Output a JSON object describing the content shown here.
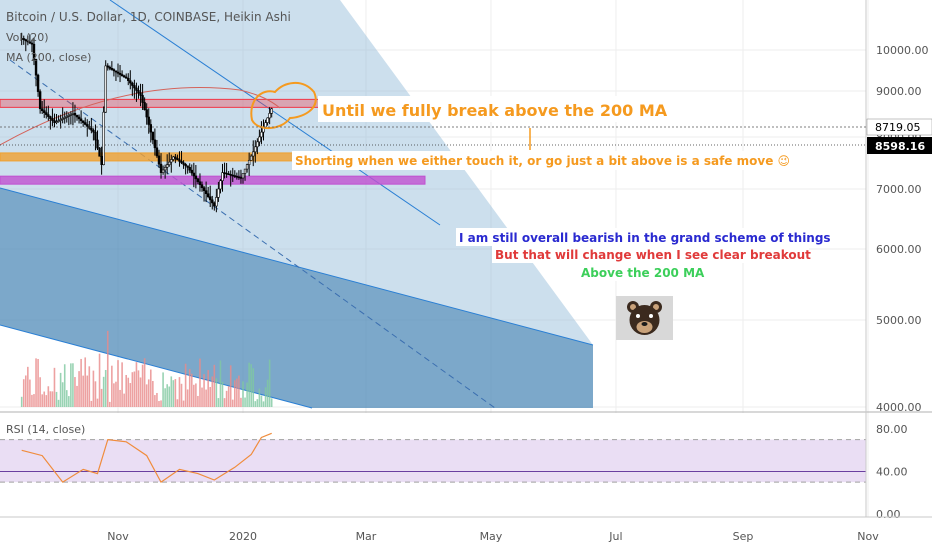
{
  "header": {
    "symbol_title": "Bitcoin / U.S. Dollar, 1D, COINBASE, Heikin Ashi",
    "indicator_1": "Vol (20)",
    "indicator_2": "MA (200, close)"
  },
  "chart_data": [
    {
      "type": "candlestick",
      "scale": "log",
      "ylim": [
        4000,
        12000
      ],
      "y_ticks": [
        "10000.00",
        "9000.00",
        "8000.00",
        "7000.00",
        "6000.00",
        "5000.00",
        "4000.00"
      ],
      "x_ticks": [
        "Nov",
        "2020",
        "Mar",
        "May",
        "Jul",
        "Sep",
        "Nov"
      ],
      "price_labels": [
        {
          "value": "8719.05",
          "role": "ma-200",
          "color": "#ffffff"
        },
        {
          "value": "8598.16",
          "role": "last-price",
          "color": "#000000"
        }
      ],
      "price_path": [
        {
          "date": "2019-09-15",
          "close": 10300
        },
        {
          "date": "2019-09-20",
          "close": 10150
        },
        {
          "date": "2019-09-24",
          "close": 8600
        },
        {
          "date": "2019-10-01",
          "close": 8300
        },
        {
          "date": "2019-10-10",
          "close": 8500
        },
        {
          "date": "2019-10-20",
          "close": 8100
        },
        {
          "date": "2019-10-24",
          "close": 7450
        },
        {
          "date": "2019-10-26",
          "close": 9600
        },
        {
          "date": "2019-11-05",
          "close": 9300
        },
        {
          "date": "2019-11-12",
          "close": 8900
        },
        {
          "date": "2019-11-22",
          "close": 7300
        },
        {
          "date": "2019-11-28",
          "close": 7600
        },
        {
          "date": "2019-12-05",
          "close": 7400
        },
        {
          "date": "2019-12-18",
          "close": 6700
        },
        {
          "date": "2019-12-22",
          "close": 7300
        },
        {
          "date": "2019-12-31",
          "close": 7200
        },
        {
          "date": "2020-01-06",
          "close": 7700
        },
        {
          "date": "2020-01-10",
          "close": 8100
        },
        {
          "date": "2020-01-15",
          "close": 8600
        }
      ],
      "horizontal_levels": [
        {
          "value": 8720,
          "color": "#f23645"
        },
        {
          "value": 7600,
          "color": "#f0a030"
        },
        {
          "value": 7160,
          "color": "#c050d0"
        }
      ],
      "annotations": [
        {
          "text": "Until we fully break above the 200 MA",
          "color": "#f59a1f"
        },
        {
          "text": "Shorting when we either touch it, or go just a bit above is a safe move 😉",
          "color": "#f59a1f"
        },
        {
          "text": "I am still overall bearish in the grand scheme of things",
          "color": "#2a2ad0"
        },
        {
          "text": "But that will change when I see clear breakout",
          "color": "#e03a3a"
        },
        {
          "text": "Above the 200 MA",
          "color": "#3ccf5a"
        }
      ],
      "icon": "bear-face-icon"
    },
    {
      "type": "line",
      "ylim": [
        0,
        100
      ],
      "y_ticks": [
        "80.00",
        "40.00",
        "0.00"
      ],
      "bands": [
        30,
        70
      ],
      "series": [
        {
          "name": "RSI (14, close)",
          "color": "#f08c3c",
          "points": [
            {
              "date": "2019-09-15",
              "value": 60
            },
            {
              "date": "2019-09-25",
              "value": 55
            },
            {
              "date": "2019-10-05",
              "value": 30
            },
            {
              "date": "2019-10-15",
              "value": 42
            },
            {
              "date": "2019-10-22",
              "value": 38
            },
            {
              "date": "2019-10-27",
              "value": 70
            },
            {
              "date": "2019-11-05",
              "value": 68
            },
            {
              "date": "2019-11-15",
              "value": 55
            },
            {
              "date": "2019-11-22",
              "value": 30
            },
            {
              "date": "2019-12-01",
              "value": 42
            },
            {
              "date": "2019-12-10",
              "value": 38
            },
            {
              "date": "2019-12-18",
              "value": 32
            },
            {
              "date": "2019-12-28",
              "value": 44
            },
            {
              "date": "2020-01-05",
              "value": 56
            },
            {
              "date": "2020-01-10",
              "value": 72
            },
            {
              "date": "2020-01-15",
              "value": 76
            }
          ]
        }
      ]
    }
  ]
}
